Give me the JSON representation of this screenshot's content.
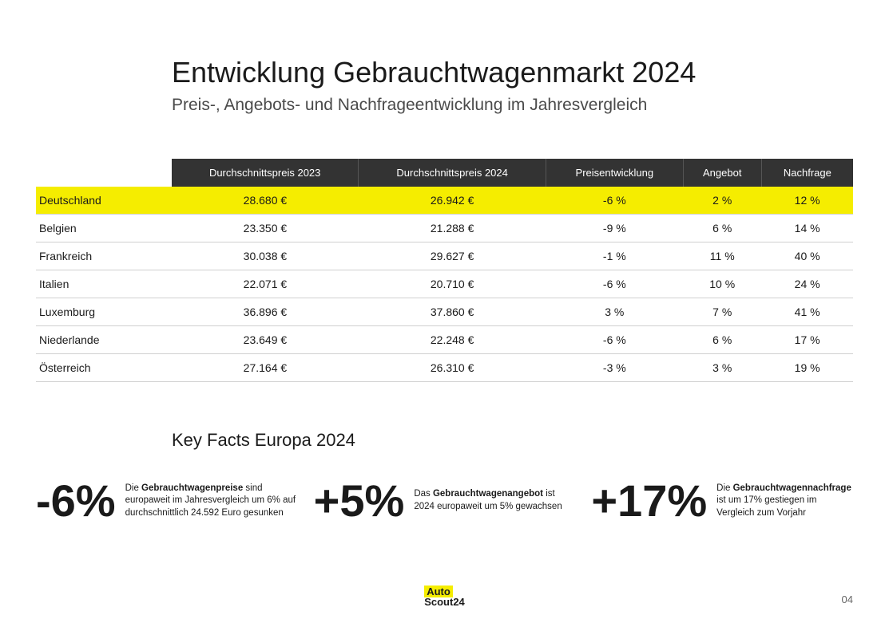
{
  "header": {
    "title": "Entwicklung Gebrauchtwagenmarkt 2024",
    "subtitle": "Preis-, Angebots- und Nachfrageentwicklung im Jahresvergleich"
  },
  "table": {
    "columns": [
      "Durchschnittspreis 2023",
      "Durchschnittspreis 2024",
      "Preisentwicklung",
      "Angebot",
      "Nachfrage"
    ],
    "rows": [
      {
        "country": "Deutschland",
        "highlight": true,
        "cells": [
          "28.680 €",
          "26.942 €",
          "-6 %",
          "2 %",
          "12 %"
        ]
      },
      {
        "country": "Belgien",
        "highlight": false,
        "cells": [
          "23.350 €",
          "21.288 €",
          "-9 %",
          "6 %",
          "14 %"
        ]
      },
      {
        "country": "Frankreich",
        "highlight": false,
        "cells": [
          "30.038 €",
          "29.627 €",
          "-1 %",
          "11 %",
          "40 %"
        ]
      },
      {
        "country": "Italien",
        "highlight": false,
        "cells": [
          "22.071 €",
          "20.710 €",
          "-6 %",
          "10 %",
          "24 %"
        ]
      },
      {
        "country": "Luxemburg",
        "highlight": false,
        "cells": [
          "36.896 €",
          "37.860 €",
          "3 %",
          "7 %",
          "41 %"
        ]
      },
      {
        "country": "Niederlande",
        "highlight": false,
        "cells": [
          "23.649 €",
          "22.248 €",
          "-6 %",
          "6 %",
          "17 %"
        ]
      },
      {
        "country": "Österreich",
        "highlight": false,
        "cells": [
          "27.164 €",
          "26.310 €",
          "-3 %",
          "3 %",
          "19 %"
        ]
      }
    ]
  },
  "keyFacts": {
    "title": "Key Facts Europa 2024",
    "items": [
      {
        "number": "-6%",
        "lead": "Die ",
        "bold": "Gebrauchtwagenpreise",
        "rest": " sind europaweit im Jahresvergleich um 6% auf durchschnittlich 24.592 Euro gesunken"
      },
      {
        "number": "+5%",
        "lead": "Das ",
        "bold": "Gebrauchtwagenangebot",
        "rest": " ist 2024 europaweit um 5% gewachsen"
      },
      {
        "number": "+17%",
        "lead": "Die ",
        "bold": "Gebrauchtwagennachfrage",
        "rest": " ist um 17% gestiegen im Vergleich zum Vorjahr"
      }
    ]
  },
  "footer": {
    "logo_top": "Auto",
    "logo_bottom": "Scout24",
    "page_number": "04"
  },
  "colors": {
    "highlight_row": "#f5ed00",
    "header_bg": "#333333",
    "header_text": "#ffffff",
    "text": "#1a1a1a",
    "border": "#d0d0d0"
  }
}
